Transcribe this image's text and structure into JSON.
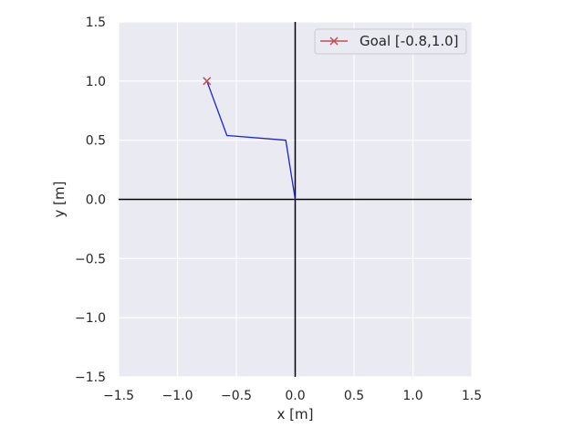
{
  "chart_data": {
    "type": "line",
    "xlabel": "x [m]",
    "ylabel": "y [m]",
    "xlim": [
      -1.5,
      1.5
    ],
    "ylim": [
      -1.5,
      1.5
    ],
    "xticks": [
      -1.5,
      -1.0,
      -0.5,
      0.0,
      0.5,
      1.0,
      1.5
    ],
    "yticks": [
      -1.5,
      -1.0,
      -0.5,
      0.0,
      0.5,
      1.0,
      1.5
    ],
    "xtick_labels": [
      "−1.5",
      "−1.0",
      "−0.5",
      "0.0",
      "0.5",
      "1.0",
      "1.5"
    ],
    "ytick_labels": [
      "−1.5",
      "−1.0",
      "−0.5",
      "0.0",
      "0.5",
      "1.0",
      "1.5"
    ],
    "grid": true,
    "legend_position": "top-right",
    "series": [
      {
        "kind": "arm-links",
        "color": "#1f1fdd",
        "x": [
          0.0,
          -0.08,
          -0.58,
          -0.75
        ],
        "y": [
          0.0,
          0.5,
          0.54,
          1.0
        ]
      },
      {
        "name": "Goal [-0.8,1.0]",
        "kind": "marker-x",
        "color": "#c44e52",
        "x": [
          -0.75
        ],
        "y": [
          1.0
        ]
      }
    ],
    "colors": {
      "plot_background": "#eaeaf2",
      "grid": "#ffffff",
      "axes_lines": "#000000"
    }
  }
}
